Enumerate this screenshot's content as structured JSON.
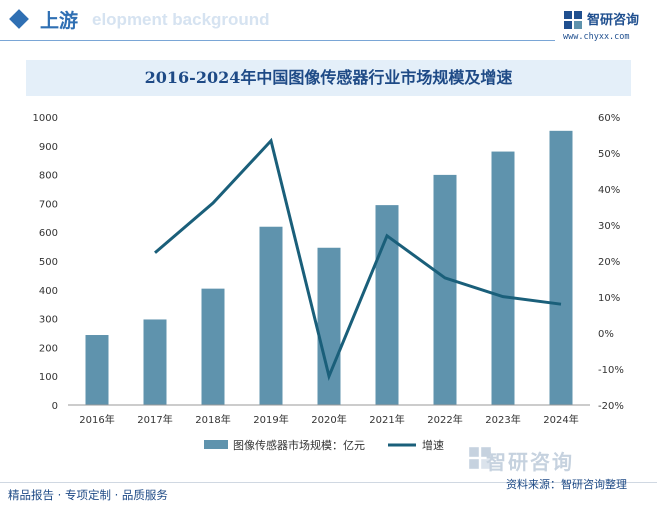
{
  "header": {
    "section_title": "上游",
    "ghost_text": "elopment background",
    "brand_name": "智研咨询",
    "brand_url": "www.chyxx.com"
  },
  "footer": {
    "left_text": "精品报告 · 专项定制 · 品质服务",
    "source_text": "资料来源：智研咨询整理",
    "watermark_brand": "智研咨询"
  },
  "colors": {
    "bar": "#5f93ad",
    "line": "#1a5f7a",
    "accent": "#2f6fb3",
    "title_bg": "#e4eff9"
  },
  "chart_data": {
    "type": "bar",
    "title": "2016-2024年中国图像传感器行业市场规模及增速",
    "categories": [
      "2016年",
      "2017年",
      "2018年",
      "2019年",
      "2020年",
      "2021年",
      "2022年",
      "2023年",
      "2024年"
    ],
    "series": [
      {
        "name": "图像传感器市场规模：亿元",
        "type": "bar",
        "axis": "left",
        "values": [
          243,
          297,
          404,
          619,
          546,
          694,
          799,
          880,
          952
        ]
      },
      {
        "name": "增速",
        "type": "line",
        "axis": "right",
        "values": [
          null,
          22.3,
          36.1,
          53.4,
          -12.0,
          27.0,
          15.3,
          10.1,
          8.0
        ]
      }
    ],
    "y_left": {
      "range": [
        0,
        1000
      ],
      "ticks": [
        "0",
        "100",
        "200",
        "300",
        "400",
        "500",
        "600",
        "700",
        "800",
        "900",
        "1000"
      ]
    },
    "y_right": {
      "range": [
        -20,
        60
      ],
      "ticks": [
        "-20%",
        "-10%",
        "0%",
        "10%",
        "20%",
        "30%",
        "40%",
        "50%",
        "60%"
      ]
    },
    "grid": false,
    "legend_position": "bottom-center"
  }
}
